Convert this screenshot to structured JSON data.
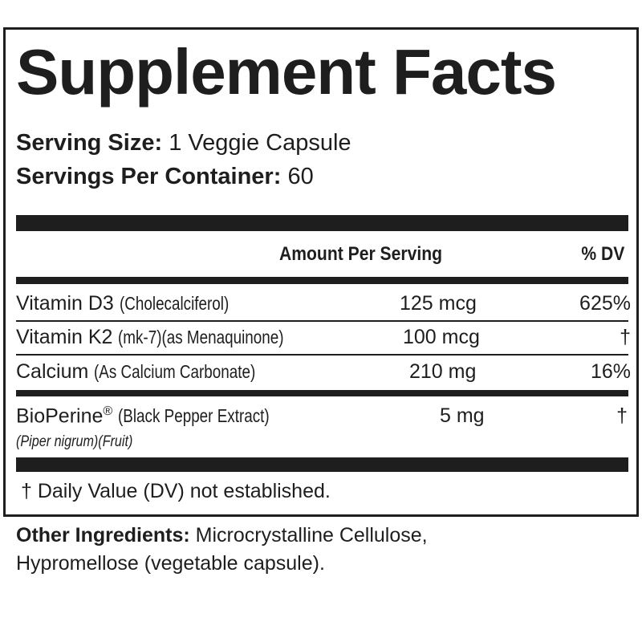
{
  "title": "Supplement Facts",
  "serving": {
    "size_label": "Serving Size:",
    "size_value": "1 Veggie Capsule",
    "per_container_label": "Servings Per Container:",
    "per_container_value": "60"
  },
  "table": {
    "headers": {
      "amount": "Amount Per Serving",
      "dv": "% DV"
    },
    "rows": [
      {
        "name": "Vitamin D3",
        "detail": "(Cholecalciferol)",
        "amount": "125 mcg",
        "dv": "625%"
      },
      {
        "name": "Vitamin K2",
        "detail": "(mk-7)(as Menaquinone)",
        "amount": "100 mcg",
        "dv": "†"
      },
      {
        "name": "Calcium",
        "detail": "(As Calcium Carbonate)",
        "amount": "210 mg",
        "dv": "16%"
      },
      {
        "name": "BioPerine",
        "mark": "®",
        "detail": "(Black Pepper Extract)",
        "subline": "(Piper nigrum)(Fruit)",
        "amount": "5 mg",
        "dv": "†"
      }
    ]
  },
  "footnote": "† Daily Value (DV) not established.",
  "other_ingredients": {
    "label": "Other Ingredients:",
    "line1": "Microcrystalline Cellulose,",
    "line2": "Hypromellose (vegetable capsule)."
  }
}
